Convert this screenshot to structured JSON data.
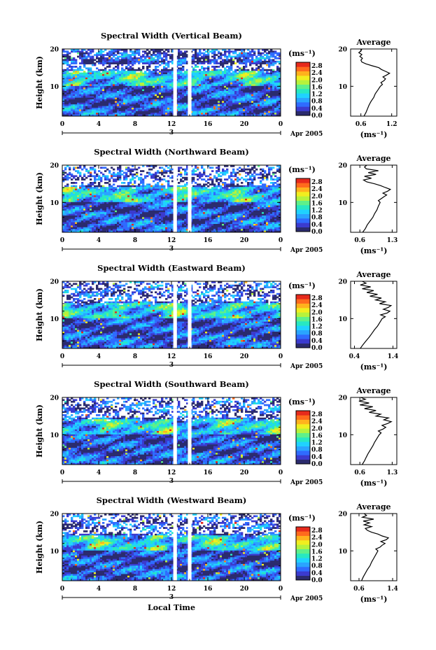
{
  "chart_data": {
    "type": "heatmap",
    "xlabel": "Local Time",
    "ylabel": "Height (km)",
    "date_label": "Apr 2005",
    "day_label": "3",
    "x_ticks": [
      "0",
      "4",
      "8",
      "12",
      "16",
      "20",
      "0"
    ],
    "xlim": [
      0,
      24
    ],
    "y_ticks": [
      "20",
      "10"
    ],
    "ylim": [
      2,
      20
    ],
    "colorbar": {
      "unit": "(ms⁻¹)",
      "ticks": [
        "2.8",
        "2.4",
        "2.0",
        "1.6",
        "1.2",
        "0.8",
        "0.4",
        "0.0"
      ],
      "range": [
        0,
        3.0
      ],
      "colors": [
        "#2b2b6e",
        "#3b3bcf",
        "#2f6bff",
        "#2aa4ff",
        "#1fd2ff",
        "#27e8c2",
        "#5ef08a",
        "#b6f23c",
        "#f1ee1f",
        "#ffb21d",
        "#ff6a1d",
        "#e62a1c"
      ]
    },
    "data_gaps_hours": [
      [
        12.2,
        12.6
      ],
      [
        13.8,
        14.2
      ]
    ],
    "panels": [
      {
        "title": "Spectral Width (Vertical Beam)",
        "profile": {
          "title": "Average",
          "xlabel": "(ms⁻¹)",
          "x_ticks": [
            "0.6",
            "1.2"
          ],
          "xlim": [
            0.4,
            1.3
          ],
          "y_ticks": [
            "20",
            "10"
          ],
          "ylim": [
            2,
            20
          ],
          "height": [
            2,
            3,
            4,
            5,
            6,
            7,
            8,
            9,
            10,
            10.5,
            11,
            11.5,
            12,
            12.5,
            13,
            13.5,
            14,
            14.5,
            15,
            15.5,
            16,
            16.5,
            17,
            17.5,
            18,
            18.5,
            19,
            19.5,
            20
          ],
          "value": [
            0.66,
            0.7,
            0.73,
            0.76,
            0.8,
            0.85,
            0.88,
            0.93,
            0.98,
            1.02,
            0.99,
            1.05,
            1.08,
            1.03,
            1.1,
            1.16,
            1.08,
            1.0,
            0.95,
            0.82,
            0.7,
            0.62,
            0.6,
            0.63,
            0.58,
            0.62,
            0.56,
            0.6,
            0.62
          ]
        }
      },
      {
        "title": "Spectral Width (Northward Beam)",
        "profile": {
          "title": "Average",
          "xlabel": "(ms⁻¹)",
          "x_ticks": [
            "0.6",
            "1.3"
          ],
          "xlim": [
            0.4,
            1.4
          ],
          "y_ticks": [
            "20",
            "10"
          ],
          "ylim": [
            2,
            20
          ],
          "height": [
            2,
            3,
            4,
            5,
            6,
            7,
            8,
            9,
            10,
            10.5,
            11,
            11.5,
            12,
            12.5,
            13,
            13.5,
            14,
            14.5,
            15,
            15.5,
            16,
            16.5,
            17,
            17.5,
            18,
            18.5,
            19,
            19.5,
            20
          ],
          "value": [
            0.66,
            0.72,
            0.76,
            0.82,
            0.88,
            0.92,
            0.97,
            1.0,
            1.04,
            1.0,
            1.06,
            1.12,
            1.18,
            1.1,
            1.2,
            1.26,
            1.15,
            1.05,
            0.92,
            0.75,
            0.68,
            0.85,
            0.7,
            0.95,
            0.78,
            1.0,
            0.74,
            0.7,
            0.75
          ]
        }
      },
      {
        "title": "Spectral Width (Eastward Beam)",
        "profile": {
          "title": "Average",
          "xlabel": "(ms⁻¹)",
          "x_ticks": [
            "0.4",
            "1.4"
          ],
          "xlim": [
            0.3,
            1.5
          ],
          "y_ticks": [
            "20",
            "10"
          ],
          "ylim": [
            2,
            20
          ],
          "height": [
            2,
            3,
            4,
            5,
            6,
            7,
            8,
            9,
            10,
            10.5,
            11,
            11.5,
            12,
            12.5,
            13,
            13.5,
            14,
            14.5,
            15,
            15.5,
            16,
            16.5,
            17,
            17.5,
            18,
            18.5,
            19,
            19.5,
            20
          ],
          "value": [
            0.55,
            0.62,
            0.7,
            0.78,
            0.85,
            0.92,
            1.0,
            1.06,
            1.12,
            1.2,
            1.08,
            1.25,
            1.32,
            1.15,
            1.28,
            1.35,
            1.05,
            1.2,
            0.95,
            1.1,
            0.8,
            1.0,
            0.72,
            0.9,
            0.6,
            0.82,
            0.55,
            0.7,
            0.6
          ]
        }
      },
      {
        "title": "Spectral Width (Southward Beam)",
        "profile": {
          "title": "Average",
          "xlabel": "(ms⁻¹)",
          "x_ticks": [
            "0.6",
            "1.3"
          ],
          "xlim": [
            0.4,
            1.4
          ],
          "y_ticks": [
            "20",
            "10"
          ],
          "ylim": [
            2,
            20
          ],
          "height": [
            2,
            3,
            4,
            5,
            6,
            7,
            8,
            9,
            10,
            10.5,
            11,
            11.5,
            12,
            12.5,
            13,
            13.5,
            14,
            14.5,
            15,
            15.5,
            16,
            16.5,
            17,
            17.5,
            18,
            18.5,
            19,
            19.5,
            20
          ],
          "value": [
            0.65,
            0.7,
            0.74,
            0.78,
            0.83,
            0.88,
            0.92,
            0.97,
            1.02,
            1.06,
            1.0,
            1.1,
            1.16,
            1.08,
            1.2,
            1.28,
            1.12,
            1.22,
            0.95,
            1.05,
            0.8,
            0.95,
            0.7,
            0.88,
            0.6,
            0.8,
            0.58,
            0.72,
            0.62
          ]
        }
      },
      {
        "title": "Spectral Width (Westward Beam)",
        "profile": {
          "title": "Average",
          "xlabel": "(ms⁻¹)",
          "x_ticks": [
            "0.6",
            "1.4"
          ],
          "xlim": [
            0.4,
            1.5
          ],
          "y_ticks": [
            "20",
            "10"
          ],
          "ylim": [
            2,
            20
          ],
          "height": [
            2,
            3,
            4,
            5,
            6,
            7,
            8,
            9,
            10,
            10.5,
            11,
            11.5,
            12,
            12.5,
            13,
            13.5,
            14,
            14.5,
            15,
            15.5,
            16,
            16.5,
            17,
            17.5,
            18,
            18.5,
            19,
            19.5,
            20
          ],
          "value": [
            0.66,
            0.7,
            0.75,
            0.8,
            0.86,
            0.9,
            0.95,
            1.0,
            1.05,
            1.0,
            1.1,
            1.15,
            1.22,
            1.12,
            1.25,
            1.3,
            1.15,
            1.05,
            0.9,
            0.8,
            0.75,
            0.9,
            0.72,
            0.85,
            0.7,
            0.95,
            0.68,
            0.78,
            0.72
          ]
        }
      }
    ]
  }
}
